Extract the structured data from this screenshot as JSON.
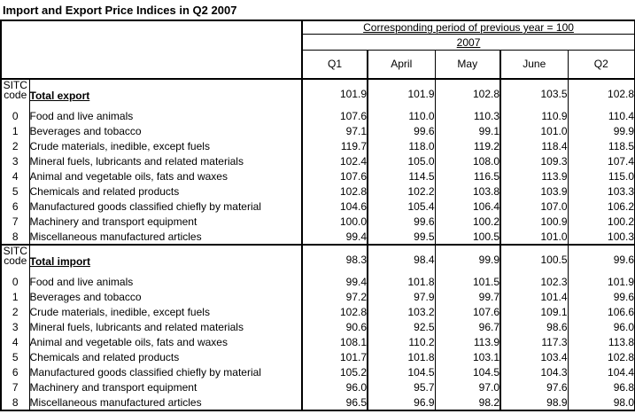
{
  "title": "Import and Export Price Indices in Q2 2007",
  "chart_data": {
    "type": "table",
    "title": "Import and Export Price Indices in Q2 2007",
    "unit_note": "Corresponding period of previous year = 100",
    "year": "2007",
    "columns": [
      "Q1",
      "April",
      "May",
      "June",
      "Q2"
    ],
    "row_header_label": [
      "SITC",
      "code"
    ],
    "sections": [
      {
        "name": "Total export",
        "total": [
          101.9,
          101.9,
          102.8,
          103.5,
          102.8
        ],
        "rows": [
          {
            "sitc": "0",
            "category": "Food and live animals",
            "values": [
              107.6,
              110.0,
              110.3,
              110.9,
              110.4
            ]
          },
          {
            "sitc": "1",
            "category": "Beverages and tobacco",
            "values": [
              97.1,
              99.6,
              99.1,
              101.0,
              99.9
            ]
          },
          {
            "sitc": "2",
            "category": "Crude materials, inedible, except fuels",
            "values": [
              119.7,
              118.0,
              119.2,
              118.4,
              118.5
            ]
          },
          {
            "sitc": "3",
            "category": "Mineral fuels, lubricants and related materials",
            "values": [
              102.4,
              105.0,
              108.0,
              109.3,
              107.4
            ]
          },
          {
            "sitc": "4",
            "category": "Animal and vegetable oils, fats and waxes",
            "values": [
              107.6,
              114.5,
              116.5,
              113.9,
              115.0
            ]
          },
          {
            "sitc": "5",
            "category": "Chemicals and related products",
            "values": [
              102.8,
              102.2,
              103.8,
              103.9,
              103.3
            ]
          },
          {
            "sitc": "6",
            "category": "Manufactured goods classified chiefly by material",
            "values": [
              104.6,
              105.4,
              106.4,
              107.0,
              106.2
            ]
          },
          {
            "sitc": "7",
            "category": "Machinery and transport equipment",
            "values": [
              100.0,
              99.6,
              100.2,
              100.9,
              100.2
            ]
          },
          {
            "sitc": "8",
            "category": "Miscellaneous manufactured articles",
            "values": [
              99.4,
              99.5,
              100.5,
              101.0,
              100.3
            ]
          }
        ]
      },
      {
        "name": "Total import",
        "total": [
          98.3,
          98.4,
          99.9,
          100.5,
          99.6
        ],
        "rows": [
          {
            "sitc": "0",
            "category": "Food and live animals",
            "values": [
              99.4,
              101.8,
              101.5,
              102.3,
              101.9
            ]
          },
          {
            "sitc": "1",
            "category": "Beverages and tobacco",
            "values": [
              97.2,
              97.9,
              99.7,
              101.4,
              99.6
            ]
          },
          {
            "sitc": "2",
            "category": "Crude materials, inedible, except fuels",
            "values": [
              102.8,
              103.2,
              107.6,
              109.1,
              106.6
            ]
          },
          {
            "sitc": "3",
            "category": "Mineral fuels, lubricants and related materials",
            "values": [
              90.6,
              92.5,
              96.7,
              98.6,
              96.0
            ]
          },
          {
            "sitc": "4",
            "category": "Animal and vegetable oils, fats and waxes",
            "values": [
              108.1,
              110.2,
              113.9,
              117.3,
              113.8
            ]
          },
          {
            "sitc": "5",
            "category": "Chemicals and related products",
            "values": [
              101.7,
              101.8,
              103.1,
              103.4,
              102.8
            ]
          },
          {
            "sitc": "6",
            "category": "Manufactured goods classified chiefly by material",
            "values": [
              105.2,
              104.5,
              104.5,
              104.3,
              104.4
            ]
          },
          {
            "sitc": "7",
            "category": "Machinery and transport equipment",
            "values": [
              96.0,
              95.7,
              97.0,
              97.6,
              96.8
            ]
          },
          {
            "sitc": "8",
            "category": "Miscellaneous manufactured articles",
            "values": [
              96.5,
              96.9,
              98.2,
              98.9,
              98.0
            ]
          }
        ]
      }
    ]
  }
}
